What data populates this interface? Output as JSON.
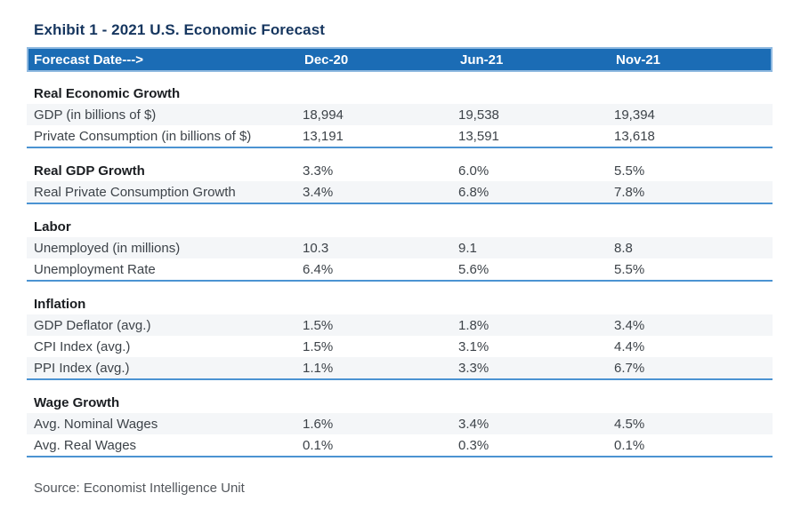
{
  "title": "Exhibit 1 - 2021 U.S. Economic Forecast",
  "source_note": "Source: Economist Intelligence Unit",
  "colors": {
    "header_bg": "#1b6cb5",
    "header_outline": "#8fb9e0",
    "title_text": "#16365f",
    "section_rule": "#4b93d2",
    "zebra_row": "#f4f6f8"
  },
  "table": {
    "columns": [
      "Forecast Date--->",
      "Dec-20",
      "Jun-21",
      "Nov-21"
    ],
    "sections": [
      {
        "header": {
          "label": "Real Economic Growth",
          "values": [
            "",
            "",
            ""
          ]
        },
        "rows": [
          {
            "label": "GDP (in billions of $)",
            "values": [
              "18,994",
              "19,538",
              "19,394"
            ]
          },
          {
            "label": "Private Consumption (in billions of $)",
            "values": [
              "13,191",
              "13,591",
              "13,618"
            ]
          }
        ]
      },
      {
        "header": {
          "label": "Real GDP Growth",
          "values": [
            "3.3%",
            "6.0%",
            "5.5%"
          ]
        },
        "rows": [
          {
            "label": "Real Private Consumption Growth",
            "values": [
              "3.4%",
              "6.8%",
              "7.8%"
            ]
          }
        ]
      },
      {
        "header": {
          "label": "Labor",
          "values": [
            "",
            "",
            ""
          ]
        },
        "rows": [
          {
            "label": "Unemployed (in millions)",
            "values": [
              "10.3",
              "9.1",
              "8.8"
            ]
          },
          {
            "label": "Unemployment Rate",
            "values": [
              "6.4%",
              "5.6%",
              "5.5%"
            ]
          }
        ]
      },
      {
        "header": {
          "label": "Inflation",
          "values": [
            "",
            "",
            ""
          ]
        },
        "rows": [
          {
            "label": "GDP Deflator (avg.)",
            "values": [
              "1.5%",
              "1.8%",
              "3.4%"
            ]
          },
          {
            "label": "CPI Index (avg.)",
            "values": [
              "1.5%",
              "3.1%",
              "4.4%"
            ]
          },
          {
            "label": "PPI Index (avg.)",
            "values": [
              "1.1%",
              "3.3%",
              "6.7%"
            ]
          }
        ]
      },
      {
        "header": {
          "label": "Wage Growth",
          "values": [
            "",
            "",
            ""
          ]
        },
        "rows": [
          {
            "label": "Avg. Nominal Wages",
            "values": [
              "1.6%",
              "3.4%",
              "4.5%"
            ]
          },
          {
            "label": "Avg. Real Wages",
            "values": [
              "0.1%",
              "0.3%",
              "0.1%"
            ]
          }
        ]
      }
    ]
  },
  "chart_data": {
    "type": "table",
    "title": "Exhibit 1 - 2021 U.S. Economic Forecast",
    "columns": [
      "Dec-20",
      "Jun-21",
      "Nov-21"
    ],
    "rows": [
      {
        "group": "Real Economic Growth",
        "label": "GDP (in billions of $)",
        "values": [
          18994,
          19538,
          19394
        ]
      },
      {
        "group": "Real Economic Growth",
        "label": "Private Consumption (in billions of $)",
        "values": [
          13191,
          13591,
          13618
        ]
      },
      {
        "group": "Real GDP Growth",
        "label": "Real GDP Growth",
        "values": [
          "3.3%",
          "6.0%",
          "5.5%"
        ]
      },
      {
        "group": "Real GDP Growth",
        "label": "Real Private Consumption Growth",
        "values": [
          "3.4%",
          "6.8%",
          "7.8%"
        ]
      },
      {
        "group": "Labor",
        "label": "Unemployed (in millions)",
        "values": [
          10.3,
          9.1,
          8.8
        ]
      },
      {
        "group": "Labor",
        "label": "Unemployment Rate",
        "values": [
          "6.4%",
          "5.6%",
          "5.5%"
        ]
      },
      {
        "group": "Inflation",
        "label": "GDP Deflator (avg.)",
        "values": [
          "1.5%",
          "1.8%",
          "3.4%"
        ]
      },
      {
        "group": "Inflation",
        "label": "CPI Index (avg.)",
        "values": [
          "1.5%",
          "3.1%",
          "4.4%"
        ]
      },
      {
        "group": "Inflation",
        "label": "PPI Index (avg.)",
        "values": [
          "1.1%",
          "3.3%",
          "6.7%"
        ]
      },
      {
        "group": "Wage Growth",
        "label": "Avg. Nominal Wages",
        "values": [
          "1.6%",
          "3.4%",
          "4.5%"
        ]
      },
      {
        "group": "Wage Growth",
        "label": "Avg. Real Wages",
        "values": [
          "0.1%",
          "0.3%",
          "0.1%"
        ]
      }
    ],
    "source": "Source: Economist Intelligence Unit"
  }
}
